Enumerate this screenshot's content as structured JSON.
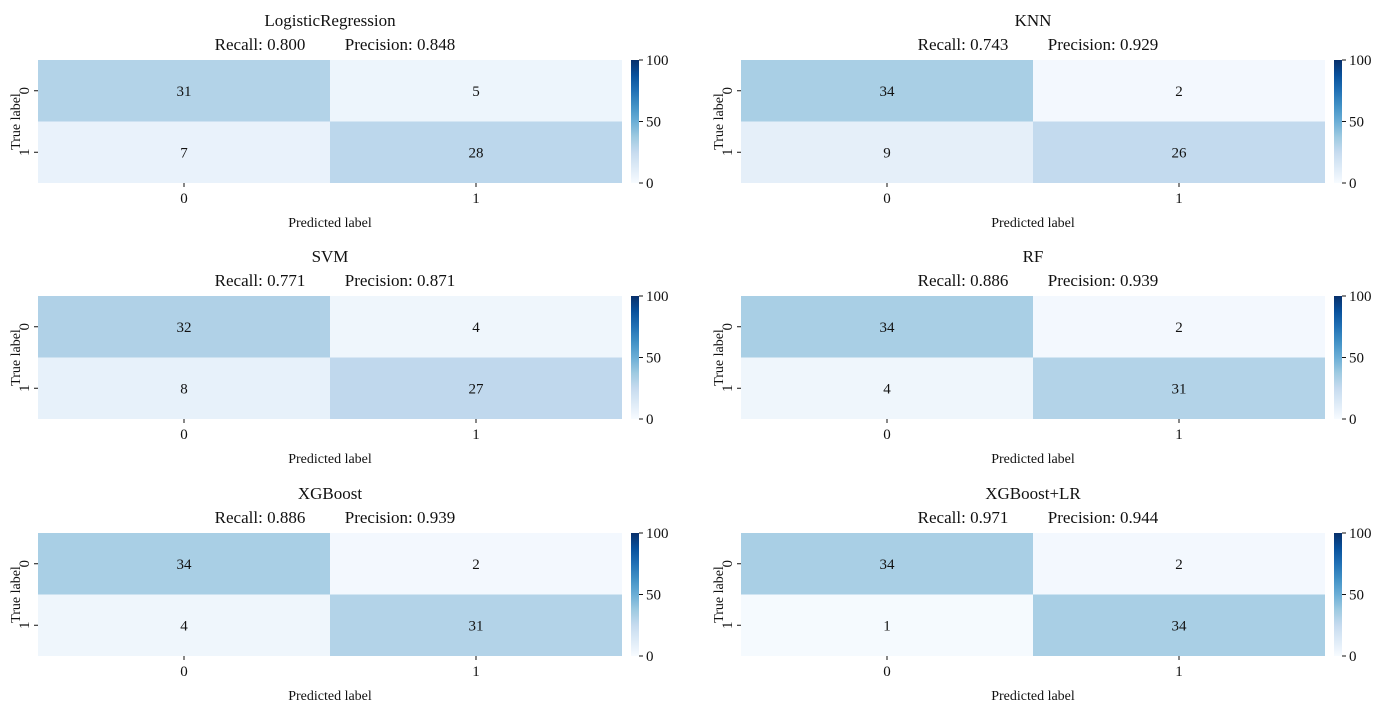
{
  "chart_data": [
    {
      "type": "heatmap",
      "title": "LogisticRegression",
      "subtitle_recall": "Recall: 0.800",
      "subtitle_precision": "Precision: 0.848",
      "xlabel": "Predicted label",
      "ylabel": "True label",
      "x_ticks": [
        "0",
        "1"
      ],
      "y_ticks": [
        "0",
        "1"
      ],
      "matrix": [
        [
          31,
          5
        ],
        [
          7,
          28
        ]
      ],
      "colorbar": {
        "min": 0,
        "max": 100,
        "ticks": [
          "0",
          "50",
          "100"
        ],
        "colormap": "Blues"
      }
    },
    {
      "type": "heatmap",
      "title": "KNN",
      "subtitle_recall": "Recall: 0.743",
      "subtitle_precision": "Precision: 0.929",
      "xlabel": "Predicted label",
      "ylabel": "True label",
      "x_ticks": [
        "0",
        "1"
      ],
      "y_ticks": [
        "0",
        "1"
      ],
      "matrix": [
        [
          34,
          2
        ],
        [
          9,
          26
        ]
      ],
      "colorbar": {
        "min": 0,
        "max": 100,
        "ticks": [
          "0",
          "50",
          "100"
        ],
        "colormap": "Blues"
      }
    },
    {
      "type": "heatmap",
      "title": "SVM",
      "subtitle_recall": "Recall: 0.771",
      "subtitle_precision": "Precision: 0.871",
      "xlabel": "Predicted label",
      "ylabel": "True label",
      "x_ticks": [
        "0",
        "1"
      ],
      "y_ticks": [
        "0",
        "1"
      ],
      "matrix": [
        [
          32,
          4
        ],
        [
          8,
          27
        ]
      ],
      "colorbar": {
        "min": 0,
        "max": 100,
        "ticks": [
          "0",
          "50",
          "100"
        ],
        "colormap": "Blues"
      }
    },
    {
      "type": "heatmap",
      "title": "RF",
      "subtitle_recall": "Recall: 0.886",
      "subtitle_precision": "Precision: 0.939",
      "xlabel": "Predicted label",
      "ylabel": "True label",
      "x_ticks": [
        "0",
        "1"
      ],
      "y_ticks": [
        "0",
        "1"
      ],
      "matrix": [
        [
          34,
          2
        ],
        [
          4,
          31
        ]
      ],
      "colorbar": {
        "min": 0,
        "max": 100,
        "ticks": [
          "0",
          "50",
          "100"
        ],
        "colormap": "Blues"
      }
    },
    {
      "type": "heatmap",
      "title": "XGBoost",
      "subtitle_recall": "Recall: 0.886",
      "subtitle_precision": "Precision: 0.939",
      "xlabel": "Predicted label",
      "ylabel": "True label",
      "x_ticks": [
        "0",
        "1"
      ],
      "y_ticks": [
        "0",
        "1"
      ],
      "matrix": [
        [
          34,
          2
        ],
        [
          4,
          31
        ]
      ],
      "colorbar": {
        "min": 0,
        "max": 100,
        "ticks": [
          "0",
          "50",
          "100"
        ],
        "colormap": "Blues"
      }
    },
    {
      "type": "heatmap",
      "title": "XGBoost+LR",
      "subtitle_recall": "Recall: 0.971",
      "subtitle_precision": "Precision: 0.944",
      "xlabel": "Predicted label",
      "ylabel": "True label",
      "x_ticks": [
        "0",
        "1"
      ],
      "y_ticks": [
        "0",
        "1"
      ],
      "matrix": [
        [
          34,
          2
        ],
        [
          1,
          34
        ]
      ],
      "colorbar": {
        "min": 0,
        "max": 100,
        "ticks": [
          "0",
          "50",
          "100"
        ],
        "colormap": "Blues"
      }
    }
  ]
}
